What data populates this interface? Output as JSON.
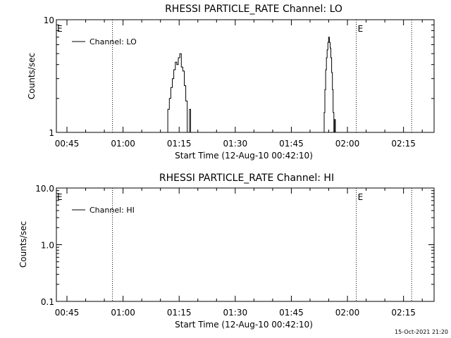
{
  "footer": {
    "timestamp": "15-Oct-2021 21:20"
  },
  "chart_data": [
    {
      "type": "line",
      "title": "RHESSI PARTICLE_RATE Channel: LO",
      "xlabel": "Start Time (12-Aug-10 00:42:10)",
      "ylabel": "Counts/sec",
      "x_units": "minutes after 00:42:10",
      "xlim": [
        0,
        101
      ],
      "ylim": [
        1,
        10
      ],
      "yscale": "log",
      "x_ticks": [
        {
          "x": 2.83,
          "label": "00:45"
        },
        {
          "x": 17.83,
          "label": "01:00"
        },
        {
          "x": 32.83,
          "label": "01:15"
        },
        {
          "x": 47.83,
          "label": "01:30"
        },
        {
          "x": 62.83,
          "label": "01:45"
        },
        {
          "x": 77.83,
          "label": "02:00"
        },
        {
          "x": 92.83,
          "label": "02:15"
        }
      ],
      "y_ticks": [
        {
          "value": 1,
          "label": "1"
        },
        {
          "value": 10,
          "label": "10"
        }
      ],
      "legend": {
        "placement": "top-left",
        "entries": [
          "Channel: LO"
        ]
      },
      "vlines": [
        {
          "x": 15.0,
          "label": "E",
          "label_side": "left"
        },
        {
          "x": 80.2,
          "label": "E",
          "label_side": "right"
        },
        {
          "x": 95.0,
          "label": "",
          "label_side": "right"
        }
      ],
      "series": [
        {
          "name": "Channel: LO",
          "segments": [
            [
              [
                29.8,
                1
              ],
              [
                29.8,
                1.6
              ],
              [
                30.2,
                1.6
              ],
              [
                30.2,
                2.0
              ],
              [
                30.6,
                2.0
              ],
              [
                30.6,
                2.5
              ],
              [
                31.0,
                2.5
              ],
              [
                31.0,
                3.0
              ],
              [
                31.4,
                3.0
              ],
              [
                31.4,
                3.6
              ],
              [
                31.8,
                3.6
              ],
              [
                31.8,
                4.2
              ],
              [
                32.2,
                4.2
              ],
              [
                32.2,
                4.0
              ],
              [
                32.6,
                4.0
              ],
              [
                32.6,
                4.6
              ],
              [
                33.0,
                4.6
              ],
              [
                33.0,
                5.0
              ],
              [
                33.4,
                5.0
              ],
              [
                33.4,
                3.8
              ],
              [
                33.8,
                3.8
              ],
              [
                33.8,
                3.5
              ],
              [
                34.2,
                3.5
              ],
              [
                34.2,
                2.6
              ],
              [
                34.6,
                2.6
              ],
              [
                34.6,
                1.9
              ],
              [
                35.0,
                1.9
              ],
              [
                35.0,
                1
              ]
            ],
            [
              [
                35.6,
                1
              ],
              [
                35.6,
                1.6
              ],
              [
                35.9,
                1.6
              ],
              [
                35.9,
                1
              ]
            ],
            [
              [
                71.6,
                1
              ],
              [
                71.6,
                1.5
              ],
              [
                71.8,
                1.5
              ],
              [
                71.8,
                2.4
              ],
              [
                72.0,
                2.4
              ],
              [
                72.0,
                3.6
              ],
              [
                72.2,
                3.6
              ],
              [
                72.2,
                4.6
              ],
              [
                72.4,
                4.6
              ],
              [
                72.4,
                5.4
              ],
              [
                72.6,
                5.4
              ],
              [
                72.6,
                6.3
              ],
              [
                72.8,
                6.3
              ],
              [
                72.8,
                7.0
              ],
              [
                73.0,
                7.0
              ],
              [
                73.0,
                6.3
              ],
              [
                73.2,
                6.3
              ],
              [
                73.2,
                5.6
              ],
              [
                73.4,
                5.6
              ],
              [
                73.4,
                4.6
              ],
              [
                73.6,
                4.6
              ],
              [
                73.6,
                3.4
              ],
              [
                73.8,
                3.4
              ],
              [
                73.8,
                2.4
              ],
              [
                74.0,
                2.4
              ],
              [
                74.0,
                1.5
              ],
              [
                74.2,
                1.5
              ],
              [
                74.2,
                1
              ]
            ],
            [
              [
                74.4,
                1
              ],
              [
                74.4,
                1.3
              ],
              [
                74.6,
                1.3
              ],
              [
                74.6,
                1
              ]
            ]
          ]
        }
      ]
    },
    {
      "type": "line",
      "title": "RHESSI PARTICLE_RATE Channel: HI",
      "xlabel": "Start Time (12-Aug-10 00:42:10)",
      "ylabel": "Counts/sec",
      "x_units": "minutes after 00:42:10",
      "xlim": [
        0,
        101
      ],
      "ylim": [
        0.1,
        10
      ],
      "yscale": "log",
      "x_ticks": [
        {
          "x": 2.83,
          "label": "00:45"
        },
        {
          "x": 17.83,
          "label": "01:00"
        },
        {
          "x": 32.83,
          "label": "01:15"
        },
        {
          "x": 47.83,
          "label": "01:30"
        },
        {
          "x": 62.83,
          "label": "01:45"
        },
        {
          "x": 77.83,
          "label": "02:00"
        },
        {
          "x": 92.83,
          "label": "02:15"
        }
      ],
      "y_ticks": [
        {
          "value": 0.1,
          "label": "0.1"
        },
        {
          "value": 1,
          "label": "1.0"
        },
        {
          "value": 10,
          "label": "10.0"
        }
      ],
      "legend": {
        "placement": "top-left",
        "entries": [
          "Channel: HI"
        ]
      },
      "vlines": [
        {
          "x": 15.0,
          "label": "E",
          "label_side": "left"
        },
        {
          "x": 80.2,
          "label": "E",
          "label_side": "right"
        },
        {
          "x": 95.0,
          "label": "",
          "label_side": "right"
        }
      ],
      "series": [
        {
          "name": "Channel: HI",
          "segments": []
        }
      ]
    }
  ]
}
